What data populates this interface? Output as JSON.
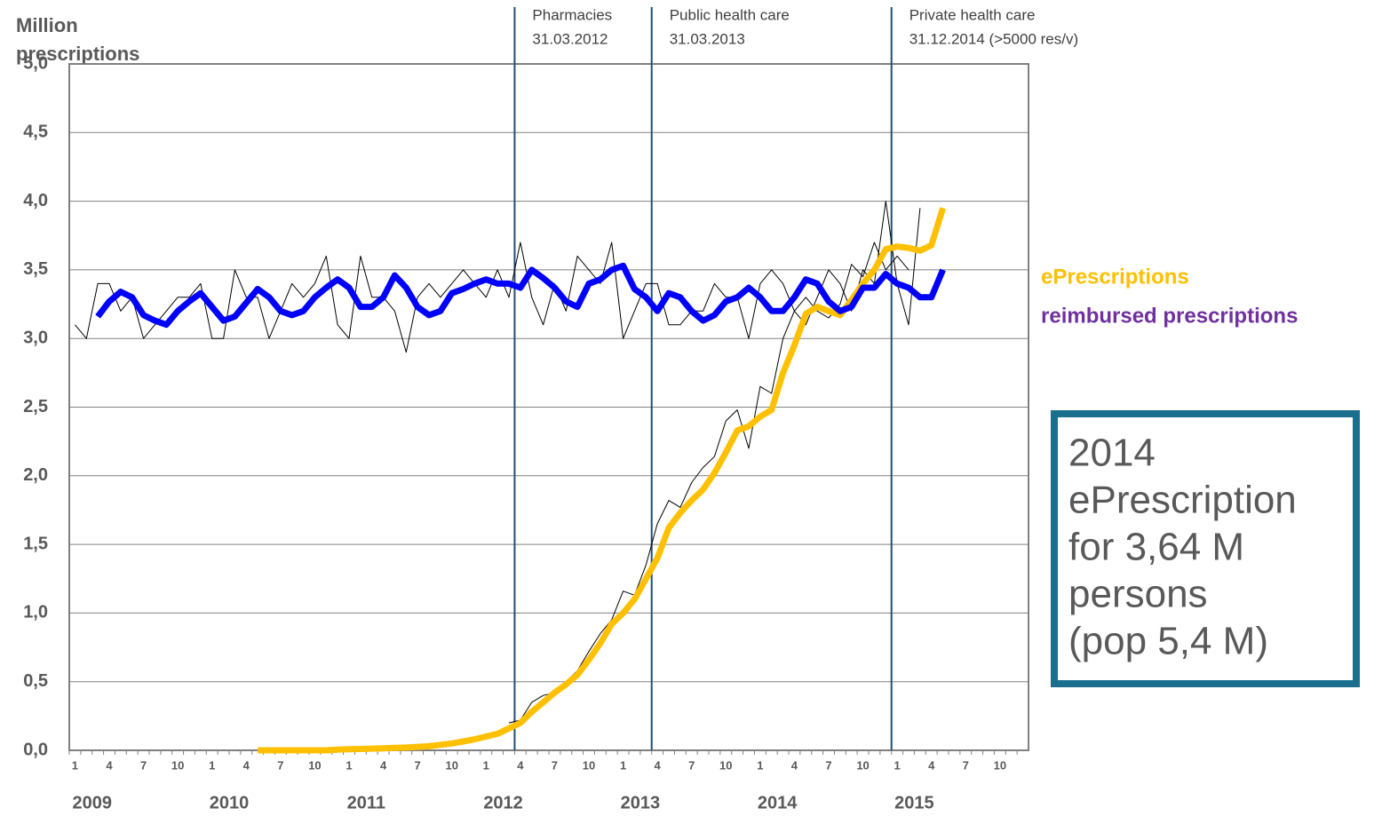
{
  "chart_data": {
    "type": "line",
    "y_label": [
      "Million",
      "prescriptions"
    ],
    "categories": [
      "1",
      null,
      null,
      "4",
      null,
      null,
      "7",
      null,
      null,
      "10",
      null,
      null,
      "1",
      null,
      null,
      "4",
      null,
      null,
      "7",
      null,
      null,
      "10",
      null,
      null,
      "1",
      null,
      null,
      "4",
      null,
      null,
      "7",
      null,
      null,
      "10",
      null,
      null,
      "1",
      null,
      null,
      "4",
      null,
      null,
      "7",
      null,
      null,
      "10",
      null,
      null,
      "1",
      null,
      null,
      "4",
      null,
      null,
      "7",
      null,
      null,
      "10",
      null,
      null,
      "1",
      null,
      null,
      "4",
      null,
      null,
      "7",
      null,
      null,
      "10",
      null,
      null,
      "1",
      null,
      null,
      "4",
      null,
      null,
      "7",
      null,
      null,
      "10",
      null,
      null
    ],
    "years": [
      "2009",
      "2010",
      "2011",
      "2012",
      "2013",
      "2014",
      "2015"
    ],
    "ylim": [
      0,
      5
    ],
    "yticks": [
      {
        "value": 0,
        "label": "0,0"
      },
      {
        "value": 0.5,
        "label": "0,5"
      },
      {
        "value": 1,
        "label": "1,0"
      },
      {
        "value": 1.5,
        "label": "1,5"
      },
      {
        "value": 2,
        "label": "2,0"
      },
      {
        "value": 2.5,
        "label": "2,5"
      },
      {
        "value": 3,
        "label": "3,0"
      },
      {
        "value": 3.5,
        "label": "3,5"
      },
      {
        "value": 4,
        "label": "4,0"
      },
      {
        "value": 4.5,
        "label": "4,5"
      },
      {
        "value": 5,
        "label": "5,0"
      }
    ],
    "grid": true,
    "series": [
      {
        "color": "#000000",
        "width": 1,
        "values": [
          3.1,
          3.0,
          3.4,
          3.4,
          3.2,
          3.3,
          3.0,
          3.1,
          3.2,
          3.3,
          3.3,
          3.4,
          3.0,
          3.0,
          3.5,
          3.3,
          3.3,
          3.0,
          3.2,
          3.4,
          3.3,
          3.4,
          3.6,
          3.1,
          3.0,
          3.6,
          3.3,
          3.3,
          3.2,
          2.9,
          3.3,
          3.4,
          3.3,
          3.4,
          3.5,
          3.4,
          3.3,
          3.5,
          3.3,
          3.7,
          3.3,
          3.1,
          3.4,
          3.2,
          3.6,
          3.5,
          3.4,
          3.7,
          3.0,
          3.2,
          3.4,
          3.4,
          3.1,
          3.1,
          3.2,
          3.2,
          3.4,
          3.3,
          3.3,
          3.0,
          3.4,
          3.5,
          3.4,
          3.2,
          3.1,
          3.3,
          3.5,
          3.4,
          3.2,
          3.5,
          3.4,
          4.0,
          3.4,
          3.1,
          3.95,
          null,
          null,
          null,
          null,
          null,
          null,
          null,
          null,
          null
        ]
      },
      {
        "color": "#000000",
        "width": 1,
        "values": [
          null,
          null,
          null,
          null,
          null,
          null,
          null,
          null,
          null,
          null,
          null,
          null,
          null,
          null,
          null,
          null,
          null,
          null,
          null,
          null,
          null,
          null,
          null,
          null,
          null,
          null,
          null,
          null,
          null,
          null,
          null,
          null,
          null,
          null,
          null,
          null,
          null,
          null,
          0.2,
          0.22,
          0.35,
          0.4,
          0.42,
          0.5,
          0.58,
          0.72,
          0.85,
          0.95,
          1.16,
          1.13,
          1.35,
          1.65,
          1.82,
          1.77,
          1.95,
          2.06,
          2.14,
          2.4,
          2.48,
          2.2,
          2.65,
          2.6,
          3.0,
          3.2,
          3.3,
          3.2,
          3.15,
          3.25,
          3.54,
          3.45,
          3.7,
          3.5,
          3.6,
          3.5,
          null,
          null,
          null,
          null,
          null,
          null,
          null,
          null,
          null,
          null
        ]
      },
      {
        "name": "ePrescriptions",
        "color": "#ffc000",
        "label_color": "#ffc000",
        "width": 7,
        "values": [
          null,
          null,
          null,
          null,
          null,
          null,
          null,
          null,
          null,
          null,
          null,
          null,
          null,
          null,
          null,
          null,
          0,
          0,
          0,
          0,
          0,
          0,
          0,
          0.005,
          0.008,
          0.01,
          0.012,
          0.015,
          0.018,
          0.02,
          0.025,
          0.03,
          0.04,
          0.05,
          0.065,
          0.08,
          0.1,
          0.12,
          0.16,
          0.2,
          0.28,
          0.35,
          0.42,
          0.48,
          0.55,
          0.66,
          0.78,
          0.92,
          1.0,
          1.1,
          1.25,
          1.4,
          1.62,
          1.73,
          1.82,
          1.9,
          2.02,
          2.17,
          2.33,
          2.36,
          2.43,
          2.48,
          2.75,
          2.95,
          3.18,
          3.23,
          3.2,
          3.17,
          3.28,
          3.4,
          3.5,
          3.65,
          3.67,
          3.66,
          3.64,
          3.68,
          3.95,
          null,
          null,
          null,
          null,
          null,
          null,
          null
        ]
      },
      {
        "name": "reimbursed prescriptions",
        "color": "#0000ff",
        "label_color": "#7030a0",
        "width": 7,
        "values": [
          null,
          null,
          3.16,
          3.27,
          3.34,
          3.3,
          3.17,
          3.13,
          3.1,
          3.2,
          3.27,
          3.33,
          3.23,
          3.13,
          3.16,
          3.26,
          3.36,
          3.3,
          3.2,
          3.17,
          3.2,
          3.3,
          3.37,
          3.43,
          3.37,
          3.23,
          3.23,
          3.3,
          3.46,
          3.37,
          3.23,
          3.17,
          3.2,
          3.33,
          3.36,
          3.4,
          3.43,
          3.4,
          3.4,
          3.37,
          3.5,
          3.44,
          3.37,
          3.27,
          3.23,
          3.4,
          3.43,
          3.5,
          3.53,
          3.36,
          3.3,
          3.2,
          3.33,
          3.3,
          3.2,
          3.13,
          3.17,
          3.27,
          3.3,
          3.37,
          3.3,
          3.2,
          3.2,
          3.3,
          3.43,
          3.4,
          3.27,
          3.2,
          3.23,
          3.37,
          3.37,
          3.47,
          3.4,
          3.37,
          3.3,
          3.3,
          3.5,
          null,
          null,
          null,
          null,
          null,
          null,
          null
        ]
      }
    ],
    "annotations": [
      [
        "Pharmacies",
        "31.03.2012"
      ],
      [
        "Public health care",
        "31.03.2013"
      ],
      [
        "Private health care",
        "31.12.2014 (>5000 res/v)"
      ]
    ],
    "note": [
      "2014",
      "ePrescription",
      "for 3,64 M",
      "persons",
      "(pop 5,4 M)"
    ]
  }
}
